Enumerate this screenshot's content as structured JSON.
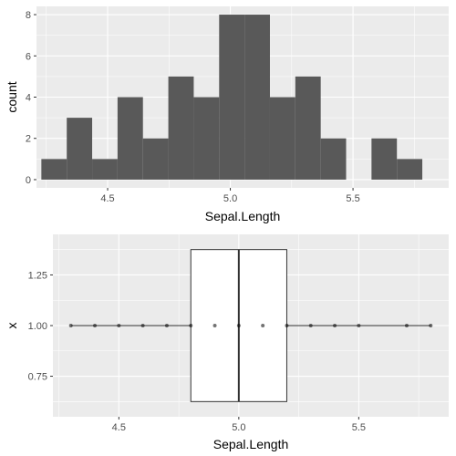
{
  "chart_data": [
    {
      "type": "bar",
      "subtype": "histogram",
      "xlabel": "Sepal.Length",
      "ylabel": "count",
      "xlim": [
        4.21,
        5.89
      ],
      "ylim": [
        -0.4,
        8.4
      ],
      "x_ticks": [
        4.5,
        5.0,
        5.5
      ],
      "x_tick_labels": [
        "4.5",
        "5.0",
        "5.5"
      ],
      "y_ticks": [
        0,
        2,
        4,
        6,
        8
      ],
      "y_tick_labels": [
        "0",
        "2",
        "4",
        "6",
        "8"
      ],
      "bin_width": 0.1035,
      "bins": [
        {
          "x0": 4.2299,
          "x1": 4.3334,
          "count": 1
        },
        {
          "x0": 4.3334,
          "x1": 4.4369,
          "count": 3
        },
        {
          "x0": 4.4369,
          "x1": 4.5404,
          "count": 1
        },
        {
          "x0": 4.5404,
          "x1": 4.6439,
          "count": 4
        },
        {
          "x0": 4.6439,
          "x1": 4.7474,
          "count": 2
        },
        {
          "x0": 4.7474,
          "x1": 4.8509,
          "count": 5
        },
        {
          "x0": 4.8509,
          "x1": 4.9544,
          "count": 4
        },
        {
          "x0": 4.9544,
          "x1": 5.0579,
          "count": 8
        },
        {
          "x0": 5.0579,
          "x1": 5.1614,
          "count": 8
        },
        {
          "x0": 5.1614,
          "x1": 5.2649,
          "count": 4
        },
        {
          "x0": 5.2649,
          "x1": 5.3684,
          "count": 5
        },
        {
          "x0": 5.3684,
          "x1": 5.4719,
          "count": 2
        },
        {
          "x0": 5.4719,
          "x1": 5.5754,
          "count": 0
        },
        {
          "x0": 5.5754,
          "x1": 5.6789,
          "count": 2
        },
        {
          "x0": 5.6789,
          "x1": 5.7824,
          "count": 1
        }
      ],
      "bar_color": "#595959",
      "panel_color": "#ebebeb",
      "grid": true
    },
    {
      "type": "boxplot",
      "xlabel": "Sepal.Length",
      "ylabel": "x",
      "xlim": [
        4.225,
        5.875
      ],
      "ylim": [
        0.55,
        1.45
      ],
      "x_ticks": [
        4.5,
        5.0,
        5.5
      ],
      "x_tick_labels": [
        "4.5",
        "5.0",
        "5.5"
      ],
      "y_ticks": [
        0.75,
        1.0,
        1.25
      ],
      "y_tick_labels": [
        "0.75",
        "1.00",
        "1.25"
      ],
      "box": {
        "x_center": 1.0,
        "box_halfwidth": 0.375,
        "min": 4.3,
        "q1": 4.8,
        "median": 5.0,
        "q3": 5.2,
        "max": 5.8
      },
      "points": [
        4.3,
        4.4,
        4.5,
        4.6,
        4.7,
        4.8,
        4.9,
        5.0,
        5.1,
        5.2,
        5.3,
        5.4,
        5.5,
        5.7,
        5.8
      ],
      "box_fill": "#ffffff",
      "line_color": "#333333",
      "point_color": "#000000",
      "panel_color": "#ebebeb",
      "grid": true
    }
  ]
}
